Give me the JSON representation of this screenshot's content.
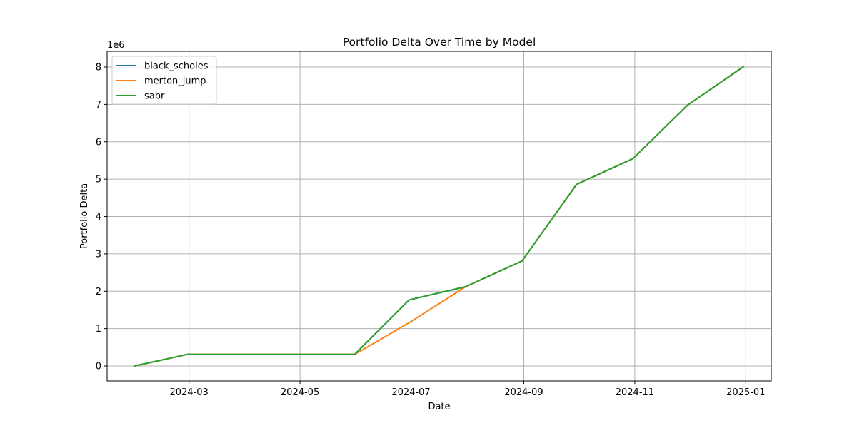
{
  "chart_data": {
    "type": "line",
    "title": "Portfolio Delta Over Time by Model",
    "xlabel": "Date",
    "ylabel": "Portfolio Delta",
    "y_multiplier_label": "1e6",
    "x": [
      "2024-01-31",
      "2024-02-29",
      "2024-03-31",
      "2024-04-30",
      "2024-05-31",
      "2024-06-30",
      "2024-07-31",
      "2024-08-31",
      "2024-09-30",
      "2024-10-31",
      "2024-11-30",
      "2024-12-31"
    ],
    "series": [
      {
        "name": "black_scholes",
        "color": "#1f77b4",
        "values": [
          0,
          310000,
          310000,
          310000,
          310000,
          1770000,
          2120000,
          2810000,
          4860000,
          5550000,
          6980000,
          8020000
        ]
      },
      {
        "name": "merton_jump",
        "color": "#ff7f0e",
        "values": [
          0,
          310000,
          310000,
          310000,
          310000,
          1160000,
          2120000,
          2810000,
          4860000,
          5550000,
          6980000,
          8020000
        ]
      },
      {
        "name": "sabr",
        "color": "#2ca02c",
        "values": [
          0,
          310000,
          310000,
          310000,
          310000,
          1770000,
          2120000,
          2810000,
          4860000,
          5550000,
          6980000,
          8020000
        ]
      }
    ],
    "xlim": [
      "2024-01-16",
      "2025-01-15"
    ],
    "ylim": [
      -400000,
      8420000
    ],
    "x_ticks": [
      "2024-03",
      "2024-05",
      "2024-07",
      "2024-09",
      "2024-11",
      "2025-01"
    ],
    "x_tick_dates": [
      "2024-03-01",
      "2024-05-01",
      "2024-07-01",
      "2024-09-01",
      "2024-11-01",
      "2025-01-01"
    ],
    "y_ticks": [
      0,
      1,
      2,
      3,
      4,
      5,
      6,
      7,
      8
    ],
    "grid": true,
    "legend_position": "top-left"
  }
}
